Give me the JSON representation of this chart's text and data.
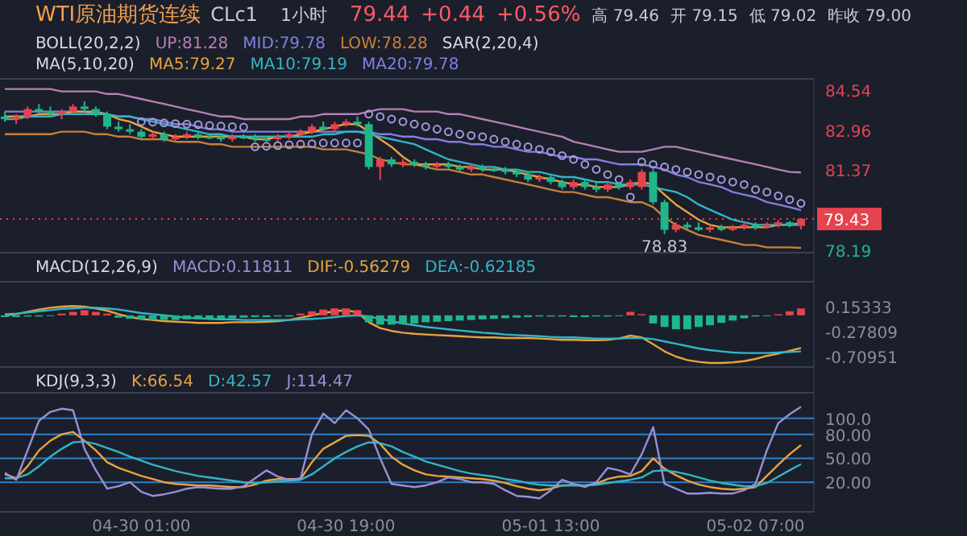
{
  "chart_data": [
    {
      "type": "candlestick",
      "title": "WTI原油期货连续",
      "subtitle": "CLc1",
      "annotations": [
        "1小时",
        "79.44",
        "+0.44",
        "+0.56%",
        "高 79.46",
        "开 79.15",
        "低 79.02",
        "昨收 79.00",
        "BOLL(20,2,2)",
        "MA(5,10,20)",
        "MA20:79.78",
        "SAR(2,20,4)",
        {
          "text": "78.83",
          "y": 78.83
        }
      ],
      "categories": [
        null,
        null,
        null,
        null,
        null,
        null,
        null,
        null,
        null,
        null,
        null,
        null,
        null,
        null,
        null,
        null,
        null,
        null,
        null,
        null,
        null,
        null,
        null,
        null,
        null,
        null,
        null,
        null,
        null,
        null,
        null,
        null,
        null,
        null,
        null,
        null,
        null,
        null,
        null,
        null,
        null,
        null,
        null,
        null,
        null,
        null,
        null,
        null,
        null,
        null,
        null,
        null,
        null,
        null,
        null,
        null,
        null,
        null,
        null,
        null,
        null,
        null,
        null,
        null,
        null,
        null,
        null,
        null,
        null,
        null,
        null
      ],
      "ohlc": [
        [
          83.5,
          83.7,
          83.3,
          83.4
        ],
        [
          83.4,
          83.6,
          83.2,
          83.5
        ],
        [
          83.5,
          83.9,
          83.4,
          83.8
        ],
        [
          83.8,
          84.0,
          83.6,
          83.7
        ],
        [
          83.7,
          83.9,
          83.5,
          83.6
        ],
        [
          83.6,
          83.8,
          83.4,
          83.7
        ],
        [
          83.7,
          84.0,
          83.6,
          83.9
        ],
        [
          83.9,
          84.1,
          83.7,
          83.8
        ],
        [
          83.8,
          83.9,
          83.5,
          83.6
        ],
        [
          83.6,
          83.7,
          83.0,
          83.1
        ],
        [
          83.1,
          83.3,
          82.9,
          83.0
        ],
        [
          83.0,
          83.2,
          82.8,
          82.9
        ],
        [
          82.9,
          83.0,
          82.6,
          82.7
        ],
        [
          82.7,
          82.9,
          82.6,
          82.8
        ],
        [
          82.8,
          82.9,
          82.5,
          82.6
        ],
        [
          82.6,
          82.8,
          82.5,
          82.7
        ],
        [
          82.7,
          82.9,
          82.6,
          82.8
        ],
        [
          82.8,
          82.9,
          82.6,
          82.7
        ],
        [
          82.7,
          82.8,
          82.6,
          82.65
        ],
        [
          82.7,
          82.8,
          82.5,
          82.6
        ],
        [
          82.6,
          82.8,
          82.5,
          82.7
        ],
        [
          82.7,
          82.8,
          82.6,
          82.65
        ],
        [
          82.7,
          82.8,
          82.5,
          82.6
        ],
        [
          82.6,
          82.7,
          82.5,
          82.55
        ],
        [
          82.6,
          82.8,
          82.5,
          82.7
        ],
        [
          82.7,
          82.9,
          82.6,
          82.8
        ],
        [
          82.8,
          83.0,
          82.7,
          82.9
        ],
        [
          82.9,
          83.2,
          82.8,
          83.1
        ],
        [
          83.1,
          83.3,
          83.0,
          83.0
        ],
        [
          83.0,
          83.3,
          82.9,
          83.2
        ],
        [
          83.2,
          83.4,
          83.1,
          83.3
        ],
        [
          83.3,
          83.5,
          83.1,
          83.2
        ],
        [
          83.2,
          83.3,
          81.4,
          81.5
        ],
        [
          81.5,
          81.9,
          80.97,
          81.8
        ],
        [
          81.8,
          81.9,
          81.5,
          81.6
        ],
        [
          81.6,
          81.8,
          81.5,
          81.7
        ],
        [
          81.7,
          81.8,
          81.5,
          81.6
        ],
        [
          81.6,
          81.7,
          81.4,
          81.5
        ],
        [
          81.5,
          81.7,
          81.4,
          81.6
        ],
        [
          81.6,
          81.7,
          81.4,
          81.5
        ],
        [
          81.5,
          81.6,
          81.3,
          81.4
        ],
        [
          81.4,
          81.6,
          81.3,
          81.5
        ],
        [
          81.5,
          81.6,
          81.3,
          81.4
        ],
        [
          81.4,
          81.5,
          81.3,
          81.35
        ],
        [
          81.4,
          81.5,
          81.2,
          81.3
        ],
        [
          81.3,
          81.4,
          81.1,
          81.2
        ],
        [
          81.2,
          81.3,
          80.9,
          81.0
        ],
        [
          81.0,
          81.2,
          80.9,
          81.1
        ],
        [
          81.1,
          81.2,
          80.8,
          80.9
        ],
        [
          80.9,
          81.0,
          80.6,
          80.7
        ],
        [
          80.7,
          81.0,
          80.6,
          80.9
        ],
        [
          80.9,
          81.0,
          80.6,
          80.7
        ],
        [
          80.7,
          80.9,
          80.5,
          80.6
        ],
        [
          80.6,
          80.9,
          80.5,
          80.8
        ],
        [
          80.8,
          80.9,
          80.6,
          80.7
        ],
        [
          80.7,
          81.0,
          80.6,
          80.9
        ],
        [
          80.7,
          81.4,
          80.6,
          81.3
        ],
        [
          81.3,
          81.4,
          80.0,
          80.1
        ],
        [
          80.1,
          80.2,
          78.83,
          79.0
        ],
        [
          79.0,
          79.3,
          78.9,
          79.2
        ],
        [
          79.2,
          79.3,
          79.0,
          79.1
        ],
        [
          79.1,
          79.3,
          78.95,
          79.0
        ],
        [
          79.0,
          79.2,
          78.9,
          79.1
        ],
        [
          79.1,
          79.2,
          78.95,
          79.0
        ],
        [
          79.0,
          79.2,
          78.95,
          79.1
        ],
        [
          79.1,
          79.3,
          79.0,
          79.2
        ],
        [
          79.2,
          79.3,
          79.0,
          79.1
        ],
        [
          79.1,
          79.3,
          79.05,
          79.2
        ],
        [
          79.2,
          79.4,
          79.1,
          79.3
        ],
        [
          79.3,
          79.35,
          79.1,
          79.15
        ],
        [
          79.15,
          79.46,
          79.02,
          79.44
        ]
      ],
      "colors": [
        "#20b68b",
        "#e5434f",
        "#e5434f",
        "#20b68b",
        "#20b68b",
        "#e5434f",
        "#e5434f",
        "#20b68b",
        "#20b68b",
        "#20b68b",
        "#20b68b",
        "#20b68b",
        "#20b68b",
        "#e5434f",
        "#20b68b",
        "#e5434f",
        "#e5434f",
        "#20b68b",
        "#20b68b",
        "#20b68b",
        "#e5434f",
        "#20b68b",
        "#20b68b",
        "#20b68b",
        "#e5434f",
        "#e5434f",
        "#e5434f",
        "#e5434f",
        "#20b68b",
        "#e5434f",
        "#e5434f",
        "#20b68b",
        "#20b68b",
        "#e5434f",
        "#20b68b",
        "#e5434f",
        "#20b68b",
        "#20b68b",
        "#e5434f",
        "#20b68b",
        "#20b68b",
        "#e5434f",
        "#20b68b",
        "#20b68b",
        "#20b68b",
        "#20b68b",
        "#20b68b",
        "#e5434f",
        "#20b68b",
        "#20b68b",
        "#e5434f",
        "#20b68b",
        "#20b68b",
        "#e5434f",
        "#20b68b",
        "#e5434f",
        "#e5434f",
        "#20b68b",
        "#20b68b",
        "#e5434f",
        "#20b68b",
        "#20b68b",
        "#e5434f",
        "#20b68b",
        "#e5434f",
        "#e5434f",
        "#20b68b",
        "#e5434f",
        "#e5434f",
        "#20b68b",
        "#e5434f"
      ],
      "series": [
        {
          "name": "UP:81.28",
          "type": "line",
          "color": "#b77fb5",
          "values": [
            84.6,
            84.6,
            84.6,
            84.6,
            84.6,
            84.5,
            84.5,
            84.5,
            84.5,
            84.4,
            84.4,
            84.3,
            84.2,
            84.1,
            84.0,
            83.9,
            83.8,
            83.7,
            83.6,
            83.5,
            83.5,
            83.4,
            83.4,
            83.4,
            83.4,
            83.4,
            83.5,
            83.5,
            83.6,
            83.6,
            83.6,
            83.6,
            83.7,
            83.8,
            83.8,
            83.8,
            83.7,
            83.7,
            83.7,
            83.6,
            83.6,
            83.5,
            83.4,
            83.3,
            83.2,
            83.1,
            83.0,
            82.9,
            82.8,
            82.7,
            82.5,
            82.4,
            82.3,
            82.2,
            82.1,
            82.1,
            82.1,
            82.2,
            82.3,
            82.3,
            82.2,
            82.1,
            82.0,
            81.9,
            81.8,
            81.7,
            81.6,
            81.5,
            81.4,
            81.3,
            81.28
          ]
        },
        {
          "name": "MID:79.78",
          "type": "line",
          "color": "#8080e0",
          "values": [
            83.7,
            83.7,
            83.7,
            83.7,
            83.7,
            83.7,
            83.7,
            83.7,
            83.6,
            83.6,
            83.5,
            83.5,
            83.4,
            83.4,
            83.3,
            83.2,
            83.2,
            83.1,
            83.0,
            83.0,
            82.9,
            82.9,
            82.9,
            82.9,
            82.9,
            82.9,
            82.9,
            82.9,
            82.9,
            82.9,
            82.9,
            82.9,
            82.9,
            82.8,
            82.8,
            82.7,
            82.7,
            82.6,
            82.6,
            82.5,
            82.5,
            82.4,
            82.4,
            82.3,
            82.3,
            82.2,
            82.1,
            82.1,
            82.0,
            81.9,
            81.9,
            81.8,
            81.8,
            81.7,
            81.6,
            81.6,
            81.6,
            81.5,
            81.4,
            81.2,
            81.1,
            80.9,
            80.8,
            80.7,
            80.5,
            80.4,
            80.3,
            80.1,
            80.0,
            79.9,
            79.78
          ]
        },
        {
          "name": "LOW:78.28",
          "type": "line",
          "color": "#c8803a",
          "values": [
            82.8,
            82.8,
            82.8,
            82.8,
            82.8,
            82.9,
            82.9,
            82.9,
            82.8,
            82.8,
            82.7,
            82.7,
            82.6,
            82.6,
            82.6,
            82.5,
            82.5,
            82.5,
            82.4,
            82.4,
            82.3,
            82.3,
            82.3,
            82.3,
            82.3,
            82.3,
            82.3,
            82.3,
            82.2,
            82.2,
            82.2,
            82.1,
            82.0,
            81.8,
            81.7,
            81.6,
            81.6,
            81.5,
            81.4,
            81.4,
            81.3,
            81.2,
            81.2,
            81.1,
            81.0,
            80.9,
            80.8,
            80.7,
            80.6,
            80.5,
            80.5,
            80.4,
            80.3,
            80.3,
            80.2,
            80.1,
            80.1,
            79.9,
            79.5,
            79.2,
            79.0,
            78.8,
            78.7,
            78.6,
            78.5,
            78.4,
            78.4,
            78.3,
            78.3,
            78.3,
            78.28
          ]
        },
        {
          "name": "MA5:79.27",
          "type": "line",
          "color": "#e8a33c",
          "values": [
            83.5,
            83.5,
            83.5,
            83.6,
            83.6,
            83.6,
            83.7,
            83.7,
            83.7,
            83.6,
            83.4,
            83.3,
            83.1,
            82.9,
            82.8,
            82.7,
            82.7,
            82.7,
            82.7,
            82.7,
            82.7,
            82.7,
            82.6,
            82.6,
            82.7,
            82.7,
            82.8,
            82.9,
            83.0,
            83.1,
            83.2,
            83.2,
            82.9,
            82.6,
            82.3,
            81.9,
            81.6,
            81.6,
            81.6,
            81.6,
            81.5,
            81.5,
            81.4,
            81.4,
            81.4,
            81.3,
            81.2,
            81.1,
            81.0,
            80.9,
            80.8,
            80.8,
            80.7,
            80.7,
            80.7,
            80.8,
            80.9,
            80.8,
            80.4,
            80.0,
            79.7,
            79.4,
            79.2,
            79.1,
            79.1,
            79.1,
            79.1,
            79.1,
            79.2,
            79.2,
            79.27
          ]
        },
        {
          "name": "MA10:79.19",
          "type": "line",
          "color": "#33b5c5",
          "values": [
            83.4,
            83.4,
            83.5,
            83.5,
            83.5,
            83.6,
            83.6,
            83.6,
            83.6,
            83.6,
            83.5,
            83.5,
            83.4,
            83.3,
            83.2,
            83.1,
            83.0,
            82.9,
            82.8,
            82.8,
            82.7,
            82.7,
            82.7,
            82.7,
            82.7,
            82.7,
            82.7,
            82.7,
            82.8,
            82.8,
            82.9,
            82.9,
            82.8,
            82.7,
            82.6,
            82.5,
            82.4,
            82.2,
            82.0,
            81.8,
            81.7,
            81.6,
            81.5,
            81.5,
            81.4,
            81.4,
            81.3,
            81.3,
            81.2,
            81.1,
            81.1,
            81.0,
            80.9,
            80.9,
            80.8,
            80.8,
            80.8,
            80.7,
            80.6,
            80.5,
            80.3,
            80.0,
            79.8,
            79.6,
            79.4,
            79.3,
            79.2,
            79.2,
            79.2,
            79.2,
            79.19
          ]
        },
        {
          "type": "scatter",
          "marker": "circle",
          "color": "#a79be0",
          "values": [
            null,
            null,
            null,
            null,
            null,
            null,
            null,
            null,
            null,
            null,
            null,
            null,
            83.3,
            83.28,
            83.25,
            83.22,
            83.2,
            83.18,
            83.15,
            83.12,
            83.1,
            83.08,
            82.3,
            82.32,
            82.35,
            82.38,
            82.4,
            82.42,
            82.45,
            82.45,
            82.45,
            82.45,
            83.6,
            83.5,
            83.4,
            83.3,
            83.2,
            83.1,
            83.0,
            82.9,
            82.8,
            82.75,
            82.7,
            82.6,
            82.5,
            82.4,
            82.3,
            82.2,
            82.1,
            81.95,
            81.8,
            81.6,
            81.4,
            81.2,
            81.0,
            80.3,
            81.7,
            81.6,
            81.5,
            81.4,
            81.3,
            81.2,
            81.1,
            81.0,
            80.9,
            80.8,
            80.6,
            80.5,
            80.35,
            80.2,
            80.05
          ]
        }
      ],
      "ref_lines": [
        {
          "axis": "y",
          "value": 79.43,
          "label": "79.43",
          "color": "#e5434f",
          "line_style": "dotted"
        }
      ],
      "ylim": [
        78.09,
        85.0
      ],
      "yticks": [
        84.54,
        82.96,
        81.37,
        78.19
      ],
      "tick_labels": "y"
    },
    {
      "type": "bar",
      "annotations": [
        "MACD(12,26,9)"
      ],
      "categories": [
        null,
        null,
        null,
        null,
        null,
        null,
        null,
        null,
        null,
        null,
        null,
        null,
        null,
        null,
        null,
        null,
        null,
        null,
        null,
        null,
        null,
        null,
        null,
        null,
        null,
        null,
        null,
        null,
        null,
        null,
        null,
        null,
        null,
        null,
        null,
        null,
        null,
        null,
        null,
        null,
        null,
        null,
        null,
        null,
        null,
        null,
        null,
        null,
        null,
        null,
        null,
        null,
        null,
        null,
        null,
        null,
        null,
        null,
        null,
        null,
        null,
        null,
        null,
        null,
        null,
        null,
        null,
        null,
        null,
        null,
        null
      ],
      "series": [
        {
          "name": "MACD:0.11811",
          "type": "bar",
          "colors": [
            "#20b68b",
            "#20b68b",
            "#20b68b",
            "#20b68b",
            "#20b68b",
            "#e5434f",
            "#e5434f",
            "#e5434f",
            "#e5434f",
            "#e5434f",
            "#20b68b",
            "#20b68b",
            "#20b68b",
            "#20b68b",
            "#20b68b",
            "#20b68b",
            "#20b68b",
            "#20b68b",
            "#20b68b",
            "#20b68b",
            "#20b68b",
            "#20b68b",
            "#20b68b",
            "#20b68b",
            "#20b68b",
            "#20b68b",
            "#e5434f",
            "#e5434f",
            "#e5434f",
            "#e5434f",
            "#e5434f",
            "#e5434f",
            "#20b68b",
            "#20b68b",
            "#20b68b",
            "#20b68b",
            "#20b68b",
            "#20b68b",
            "#20b68b",
            "#20b68b",
            "#20b68b",
            "#20b68b",
            "#20b68b",
            "#20b68b",
            "#20b68b",
            "#20b68b",
            "#20b68b",
            "#20b68b",
            "#20b68b",
            "#20b68b",
            "#20b68b",
            "#20b68b",
            "#20b68b",
            "#20b68b",
            "#20b68b",
            "#e5434f",
            "#e5434f",
            "#20b68b",
            "#20b68b",
            "#20b68b",
            "#20b68b",
            "#20b68b",
            "#20b68b",
            "#20b68b",
            "#20b68b",
            "#20b68b",
            "#20b68b",
            "#20b68b",
            "#e5434f",
            "#e5434f",
            "#e5434f"
          ],
          "values": [
            -0.03,
            -0.03,
            -0.02,
            -0.02,
            -0.01,
            0.03,
            0.06,
            0.09,
            0.06,
            0.03,
            -0.04,
            -0.06,
            -0.07,
            -0.08,
            -0.08,
            -0.08,
            -0.07,
            -0.07,
            -0.06,
            -0.06,
            -0.05,
            -0.04,
            -0.03,
            -0.03,
            -0.02,
            -0.02,
            0.03,
            0.07,
            0.1,
            0.12,
            0.12,
            0.09,
            -0.12,
            -0.16,
            -0.16,
            -0.15,
            -0.14,
            -0.12,
            -0.11,
            -0.1,
            -0.09,
            -0.08,
            -0.07,
            -0.06,
            -0.05,
            -0.04,
            -0.03,
            -0.02,
            -0.02,
            -0.02,
            -0.03,
            -0.03,
            -0.02,
            -0.02,
            -0.01,
            0.06,
            0.02,
            -0.14,
            -0.2,
            -0.24,
            -0.24,
            -0.2,
            -0.17,
            -0.13,
            -0.09,
            -0.05,
            -0.02,
            -0.01,
            0.02,
            0.07,
            0.118
          ]
        },
        {
          "name": "DIF:-0.56279",
          "type": "line",
          "color": "#e8a33c",
          "values": [
            0.0,
            0.02,
            0.06,
            0.1,
            0.13,
            0.15,
            0.16,
            0.15,
            0.12,
            0.08,
            0.02,
            -0.03,
            -0.06,
            -0.08,
            -0.1,
            -0.11,
            -0.12,
            -0.13,
            -0.13,
            -0.13,
            -0.12,
            -0.12,
            -0.12,
            -0.11,
            -0.1,
            -0.08,
            -0.04,
            0.0,
            0.04,
            0.07,
            0.09,
            0.05,
            -0.12,
            -0.22,
            -0.27,
            -0.3,
            -0.32,
            -0.33,
            -0.34,
            -0.35,
            -0.36,
            -0.37,
            -0.38,
            -0.38,
            -0.39,
            -0.39,
            -0.39,
            -0.4,
            -0.41,
            -0.42,
            -0.42,
            -0.43,
            -0.43,
            -0.42,
            -0.4,
            -0.35,
            -0.38,
            -0.5,
            -0.62,
            -0.71,
            -0.77,
            -0.8,
            -0.82,
            -0.82,
            -0.81,
            -0.79,
            -0.75,
            -0.7,
            -0.66,
            -0.61,
            -0.56279
          ]
        },
        {
          "name": "DEA:-0.62185",
          "type": "line",
          "color": "#33b5c5",
          "values": [
            0.02,
            0.03,
            0.05,
            0.07,
            0.09,
            0.11,
            0.12,
            0.13,
            0.13,
            0.12,
            0.1,
            0.07,
            0.04,
            0.02,
            0.0,
            -0.02,
            -0.04,
            -0.05,
            -0.06,
            -0.07,
            -0.07,
            -0.08,
            -0.08,
            -0.08,
            -0.08,
            -0.08,
            -0.07,
            -0.06,
            -0.05,
            -0.03,
            -0.01,
            0.0,
            -0.02,
            -0.06,
            -0.1,
            -0.14,
            -0.17,
            -0.2,
            -0.22,
            -0.24,
            -0.26,
            -0.28,
            -0.3,
            -0.31,
            -0.33,
            -0.34,
            -0.35,
            -0.36,
            -0.37,
            -0.38,
            -0.38,
            -0.39,
            -0.4,
            -0.4,
            -0.4,
            -0.39,
            -0.39,
            -0.41,
            -0.45,
            -0.49,
            -0.53,
            -0.57,
            -0.6,
            -0.62,
            -0.64,
            -0.65,
            -0.65,
            -0.65,
            -0.64,
            -0.63,
            -0.62185
          ]
        }
      ],
      "ylim": [
        -0.89,
        0.58
      ],
      "yticks": [
        0.15333,
        -0.27809,
        -0.70951
      ],
      "tick_labels": "y"
    },
    {
      "type": "line",
      "annotations": [
        "KDJ(9,3,3)"
      ],
      "categories": [
        null,
        null,
        null,
        null,
        null,
        null,
        null,
        null,
        null,
        null,
        null,
        null,
        "04-30 01:00",
        null,
        null,
        null,
        null,
        null,
        null,
        null,
        null,
        null,
        null,
        null,
        null,
        null,
        null,
        null,
        null,
        null,
        "04-30 19:00",
        null,
        null,
        null,
        null,
        null,
        null,
        null,
        null,
        null,
        null,
        null,
        null,
        null,
        null,
        null,
        null,
        null,
        "05-01 13:00",
        null,
        null,
        null,
        null,
        null,
        null,
        null,
        null,
        null,
        null,
        null,
        null,
        null,
        null,
        null,
        null,
        null,
        "05-02 07:00",
        null,
        null,
        null,
        null
      ],
      "series": [
        {
          "name": "K:66.54",
          "color": "#e8a33c",
          "values": [
            30,
            25,
            40,
            60,
            72,
            80,
            83,
            72,
            60,
            45,
            38,
            33,
            28,
            24,
            20,
            18,
            17,
            16,
            16,
            15,
            14,
            14,
            17,
            22,
            24,
            24,
            24,
            45,
            62,
            70,
            78,
            79,
            78,
            68,
            52,
            42,
            35,
            30,
            28,
            27,
            26,
            25,
            24,
            22,
            19,
            15,
            12,
            10,
            12,
            16,
            17,
            16,
            18,
            24,
            27,
            28,
            34,
            50,
            37,
            29,
            22,
            17,
            14,
            12,
            11,
            12,
            14,
            28,
            42,
            55,
            66.54
          ]
        },
        {
          "name": "D:42.57",
          "color": "#33b5c5",
          "values": [
            25,
            25,
            30,
            40,
            52,
            62,
            70,
            71,
            68,
            63,
            58,
            52,
            47,
            42,
            38,
            34,
            31,
            28,
            26,
            24,
            22,
            20,
            19,
            20,
            21,
            22,
            23,
            30,
            40,
            50,
            58,
            65,
            70,
            69,
            65,
            58,
            52,
            46,
            42,
            38,
            34,
            31,
            29,
            27,
            24,
            22,
            19,
            17,
            16,
            16,
            16,
            16,
            17,
            19,
            21,
            23,
            26,
            34,
            35,
            33,
            30,
            26,
            22,
            19,
            17,
            15,
            15,
            19,
            27,
            35,
            42.57
          ]
        },
        {
          "name": "J:114.47",
          "color": "#9a8fd6",
          "values": [
            32,
            23,
            60,
            97,
            108,
            112,
            110,
            62,
            35,
            12,
            15,
            20,
            8,
            3,
            5,
            8,
            12,
            14,
            13,
            12,
            12,
            15,
            25,
            35,
            27,
            23,
            25,
            80,
            106,
            94,
            110,
            100,
            86,
            50,
            18,
            16,
            14,
            16,
            20,
            26,
            24,
            20,
            20,
            18,
            10,
            3,
            2,
            0,
            10,
            23,
            18,
            14,
            20,
            38,
            35,
            30,
            55,
            89,
            18,
            12,
            6,
            6,
            7,
            6,
            6,
            10,
            18,
            60,
            94,
            105,
            114.47
          ]
        }
      ],
      "ylim": [
        -17,
        132
      ],
      "yticks": [
        {
          "value": 100,
          "label": "100.0"
        },
        {
          "value": 80,
          "label": "80.00"
        },
        {
          "value": 50,
          "label": "50.00"
        },
        {
          "value": 20,
          "label": "20.00"
        }
      ],
      "grid": "y"
    }
  ]
}
